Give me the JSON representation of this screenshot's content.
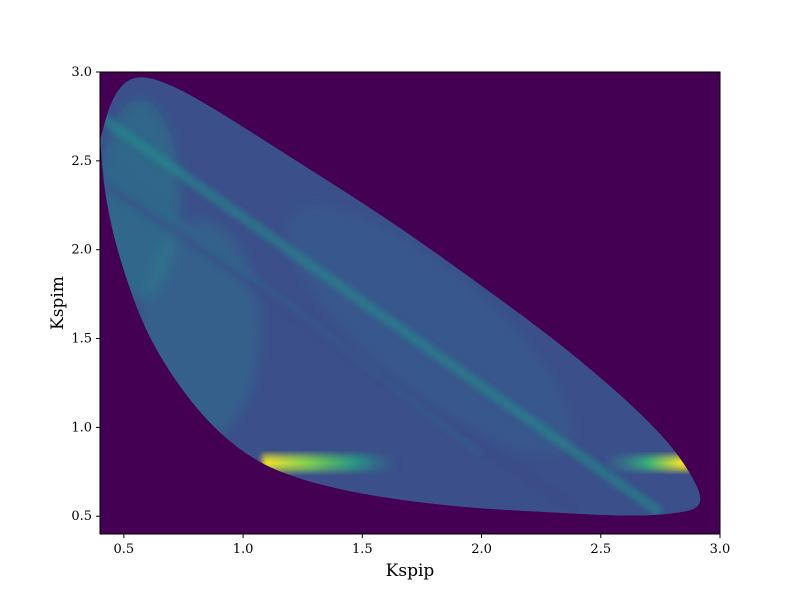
{
  "chart_data": {
    "type": "heatmap",
    "title": "",
    "xlabel": "Kspip",
    "ylabel": "Kspim",
    "xlim": [
      0.4,
      3.0
    ],
    "ylim": [
      0.4,
      3.0
    ],
    "x_ticks": [
      0.5,
      1.0,
      1.5,
      2.0,
      2.5,
      3.0
    ],
    "y_ticks": [
      0.5,
      1.0,
      1.5,
      2.0,
      2.5,
      3.0
    ],
    "x_tick_labels": [
      "0.5",
      "1.0",
      "1.5",
      "2.0",
      "2.5",
      "3.0"
    ],
    "y_tick_labels": [
      "0.5",
      "1.0",
      "1.5",
      "2.0",
      "2.5",
      "3.0"
    ],
    "colormap": "viridis",
    "background_color": "#440154",
    "grid": false,
    "legend": "none",
    "kinematic_region_boundary": [
      [
        0.4,
        2.62
      ],
      [
        0.45,
        2.86
      ],
      [
        0.53,
        2.98
      ],
      [
        0.65,
        2.96
      ],
      [
        0.85,
        2.82
      ],
      [
        1.2,
        2.52
      ],
      [
        1.6,
        2.18
      ],
      [
        2.0,
        1.8
      ],
      [
        2.4,
        1.4
      ],
      [
        2.75,
        0.98
      ],
      [
        2.9,
        0.7
      ],
      [
        2.93,
        0.55
      ],
      [
        2.8,
        0.51
      ],
      [
        2.6,
        0.5
      ],
      [
        2.3,
        0.52
      ],
      [
        1.9,
        0.55
      ],
      [
        1.5,
        0.62
      ],
      [
        1.2,
        0.72
      ],
      [
        1.0,
        0.85
      ],
      [
        0.8,
        1.1
      ],
      [
        0.6,
        1.5
      ],
      [
        0.48,
        1.95
      ],
      [
        0.42,
        2.3
      ],
      [
        0.4,
        2.62
      ]
    ],
    "peak_band": {
      "y": 0.8,
      "x_ranges": [
        [
          1.08,
          1.65
        ],
        [
          2.5,
          2.9
        ]
      ],
      "max_at": [
        1.2,
        0.8
      ]
    },
    "diagonal_ridges": [
      {
        "from": [
          0.4,
          2.75
        ],
        "to": [
          2.75,
          0.52
        ]
      },
      {
        "from": [
          0.4,
          2.5
        ],
        "to": [
          2.0,
          0.85
        ]
      },
      {
        "from": [
          0.42,
          2.37
        ],
        "to": [
          2.38,
          0.55
        ]
      }
    ]
  }
}
